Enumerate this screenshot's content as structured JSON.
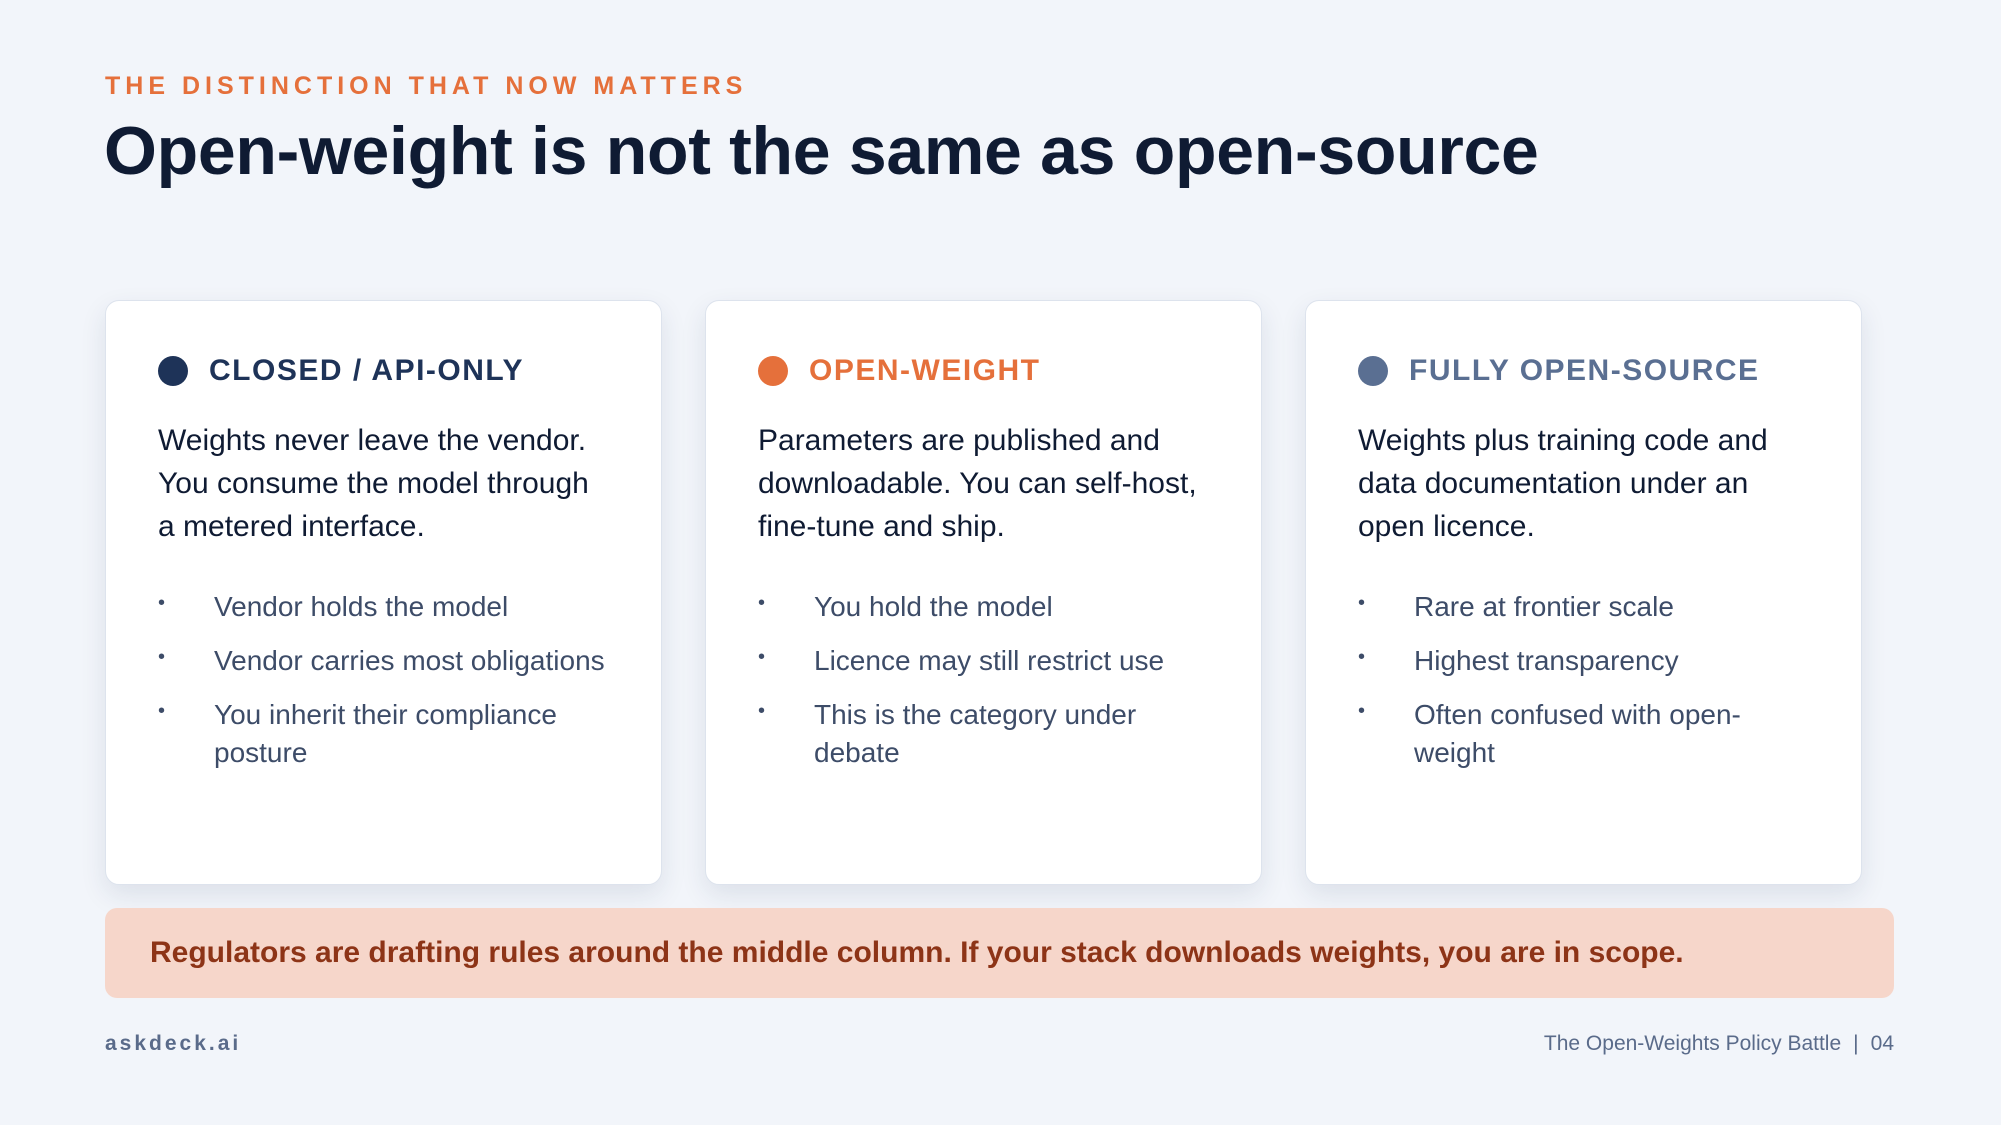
{
  "header": {
    "eyebrow": "THE DISTINCTION THAT NOW MATTERS",
    "title": "Open-weight is not the same as open-source"
  },
  "cards": [
    {
      "title": "CLOSED / API-ONLY",
      "accent_color": "#1e3358",
      "body": "Weights never leave the vendor. You consume the model through a metered interface.",
      "bullets": [
        "Vendor holds the model",
        "Vendor carries most obligations",
        "You inherit their compliance posture"
      ]
    },
    {
      "title": "OPEN-WEIGHT",
      "accent_color": "#e5703b",
      "body": "Parameters are published and downloadable. You can self-host, fine-tune and ship.",
      "bullets": [
        "You hold the model",
        "Licence may still restrict use",
        "This is the category under debate"
      ]
    },
    {
      "title": "FULLY OPEN-SOURCE",
      "accent_color": "#5a6f92",
      "body": "Weights plus training code and data documentation under an open licence.",
      "bullets": [
        "Rare at frontier scale",
        "Highest transparency",
        "Often confused with open-weight"
      ]
    }
  ],
  "bullet_glyph": "•",
  "callout": {
    "text": "Regulators are drafting rules around the middle column. If your stack downloads weights, you are in scope."
  },
  "footer": {
    "brand": "askdeck.ai",
    "deck_title": "The Open-Weights Policy Battle",
    "separator": "|",
    "page_number": "04"
  }
}
